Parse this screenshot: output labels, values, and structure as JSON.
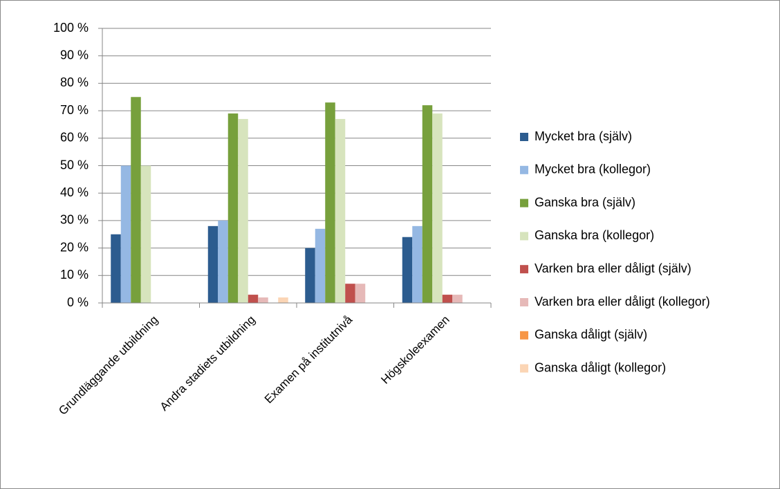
{
  "chart_data": {
    "type": "bar",
    "categories": [
      "Grundläggande utbildning",
      "Andra stadiets utbildning",
      "Examen på institutnivå",
      "Högskoleexamen"
    ],
    "series": [
      {
        "name": "Mycket bra (själv)",
        "color": "#2c5c8f",
        "values": [
          25,
          28,
          20,
          24
        ]
      },
      {
        "name": "Mycket bra (kollegor)",
        "color": "#95b8e3",
        "values": [
          50,
          30,
          27,
          28
        ]
      },
      {
        "name": "Ganska bra (själv)",
        "color": "#77a03c",
        "values": [
          75,
          69,
          73,
          72
        ]
      },
      {
        "name": "Ganska bra (kollegor)",
        "color": "#d7e4bd",
        "values": [
          50,
          67,
          67,
          69
        ]
      },
      {
        "name": "Varken bra eller dåligt (själv)",
        "color": "#c0504d",
        "values": [
          0,
          3,
          7,
          3
        ]
      },
      {
        "name": "Varken bra eller dåligt (kollegor)",
        "color": "#e6b9b8",
        "values": [
          0,
          2,
          7,
          3
        ]
      },
      {
        "name": "Ganska dåligt (själv)",
        "color": "#f79646",
        "values": [
          0,
          0,
          0,
          0
        ]
      },
      {
        "name": "Ganska dåligt (kollegor)",
        "color": "#fbd5b5",
        "values": [
          0,
          2,
          0,
          0
        ]
      }
    ],
    "ylim": [
      0,
      100
    ],
    "yticks": [
      {
        "value": 0,
        "label": "0 %"
      },
      {
        "value": 10,
        "label": "10 %"
      },
      {
        "value": 20,
        "label": "20 %"
      },
      {
        "value": 30,
        "label": "30 %"
      },
      {
        "value": 40,
        "label": "40 %"
      },
      {
        "value": 50,
        "label": "50 %"
      },
      {
        "value": 60,
        "label": "60 %"
      },
      {
        "value": 70,
        "label": "70 %"
      },
      {
        "value": 80,
        "label": "80 %"
      },
      {
        "value": 90,
        "label": "90 %"
      },
      {
        "value": 100,
        "label": "100 %"
      }
    ],
    "grid": true,
    "legend": "right"
  }
}
